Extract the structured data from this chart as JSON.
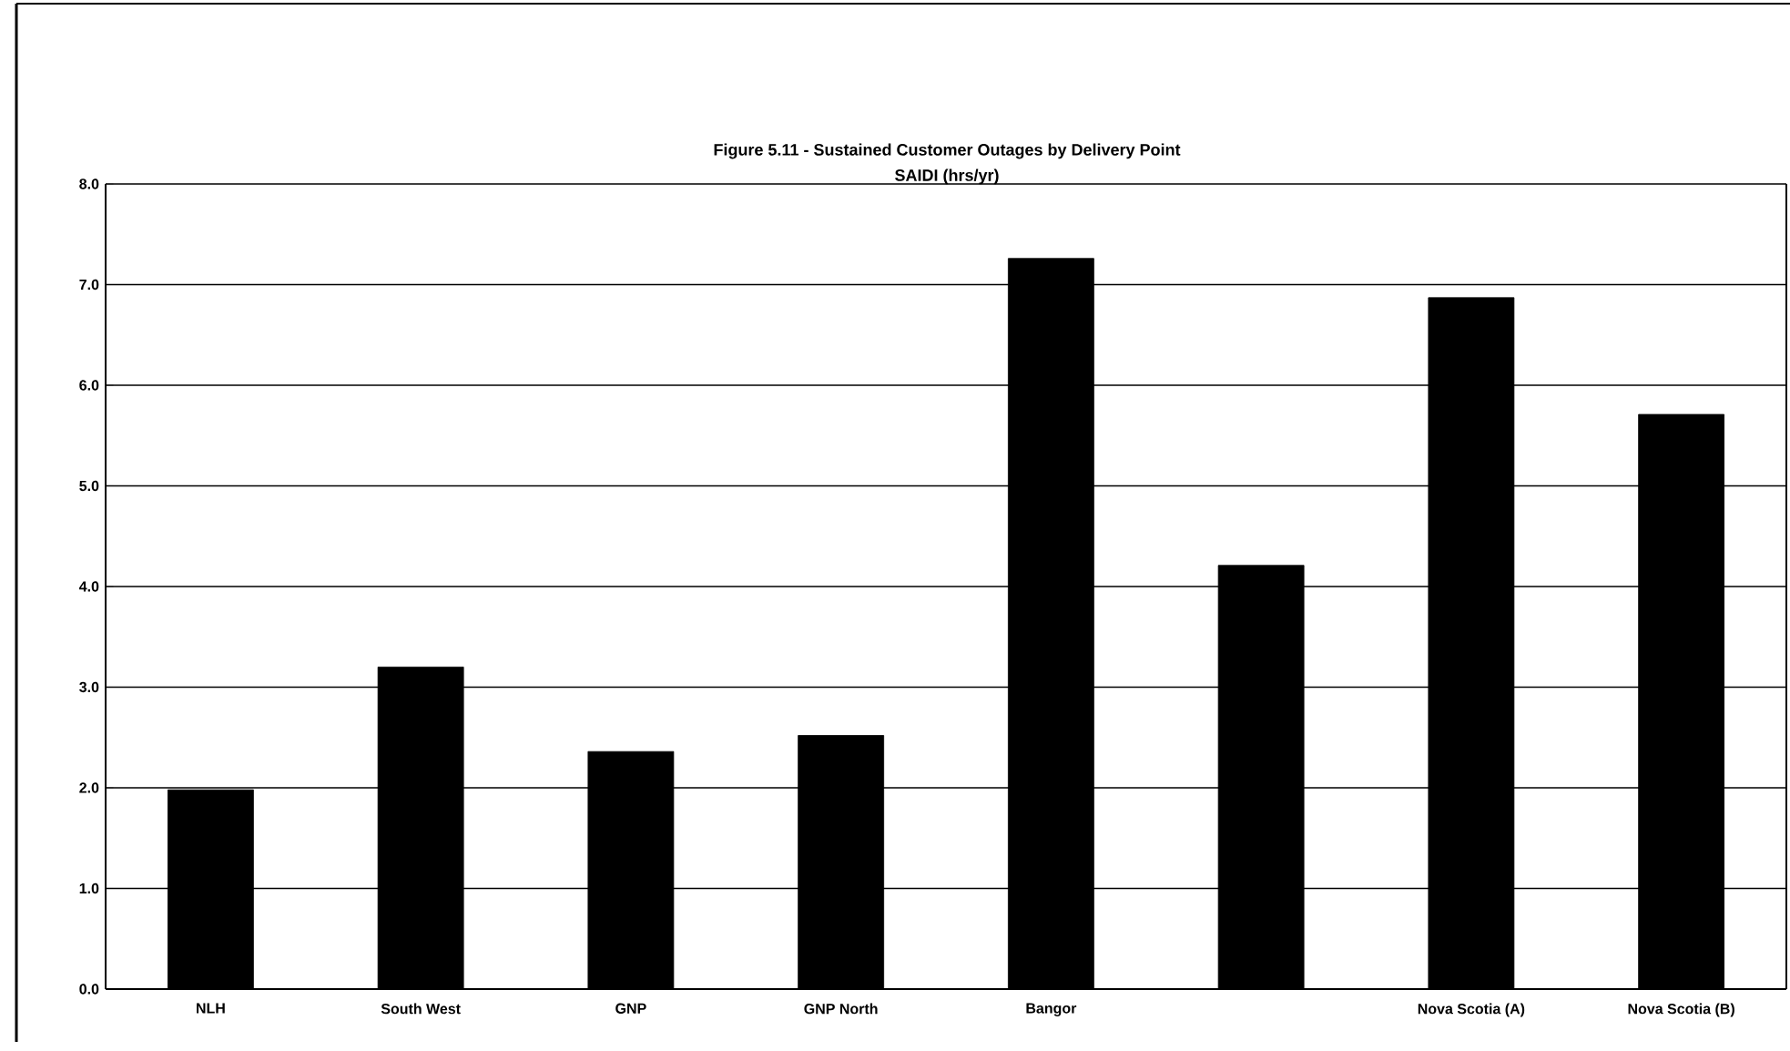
{
  "chart_data": {
    "type": "bar",
    "title": "Figure 5.11 - Sustained Customer Outages by Delivery Point",
    "subtitle": "SAIDI (hrs/yr)",
    "categories": [
      "NLH",
      "South West",
      "GNP",
      "GNP North",
      "Bangor",
      null,
      "Nova Scotia (A)",
      "Nova Scotia (B)"
    ],
    "values": [
      1.98,
      3.2,
      2.36,
      2.52,
      7.26,
      4.21,
      6.87,
      5.71
    ],
    "color": "#000000",
    "ylim": [
      0,
      8
    ],
    "yticks": [
      {
        "value": 0,
        "label": "0.0"
      },
      {
        "value": 1,
        "label": "1.0"
      },
      {
        "value": 2,
        "label": "2.0"
      },
      {
        "value": 3,
        "label": "3.0"
      },
      {
        "value": 4,
        "label": "4.0"
      },
      {
        "value": 5,
        "label": "5.0"
      },
      {
        "value": 6,
        "label": "6.0"
      },
      {
        "value": 7,
        "label": "7.0"
      },
      {
        "value": 8,
        "label": "8.0"
      }
    ],
    "grid": "y"
  }
}
